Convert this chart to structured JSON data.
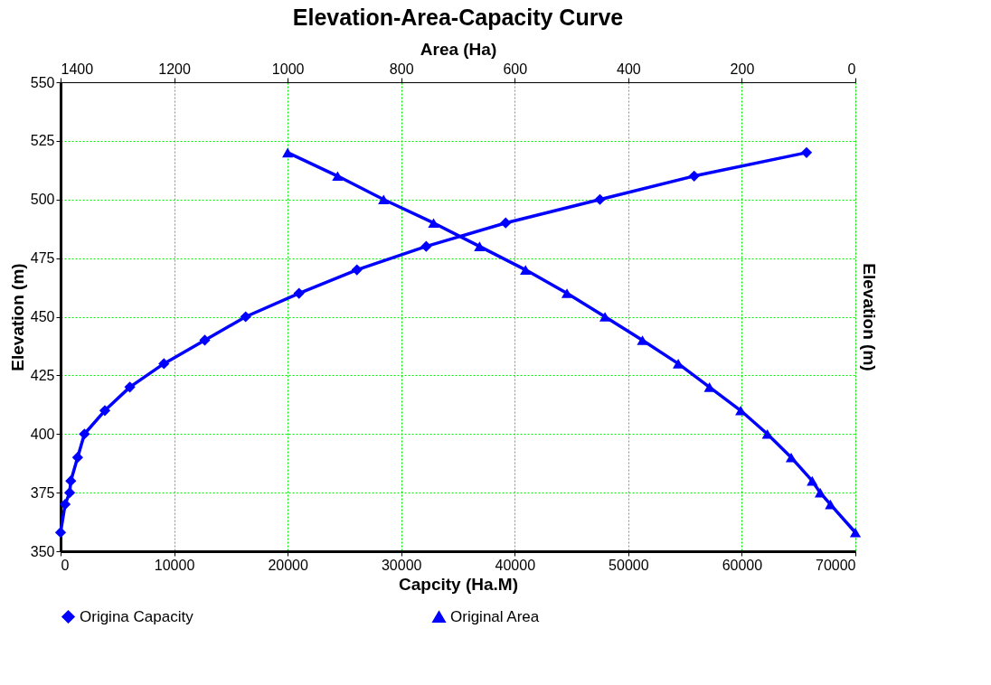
{
  "chart_data": {
    "type": "line",
    "title": "Elevation-Area-Capacity Curve",
    "xlabel": "Capcity (Ha.M)",
    "x2label": "Area (Ha)",
    "ylabel": "Elevation (m)",
    "y2label": "Elevation (m)",
    "xlim": [
      0,
      70000
    ],
    "xticks": [
      0,
      10000,
      20000,
      30000,
      40000,
      50000,
      60000,
      70000
    ],
    "x2lim": [
      1400,
      0
    ],
    "x2ticks": [
      1400,
      1200,
      1000,
      800,
      600,
      400,
      200,
      0
    ],
    "ylim": [
      350,
      550
    ],
    "yticks": [
      350,
      375,
      400,
      425,
      450,
      475,
      500,
      525,
      550
    ],
    "grid": true,
    "legend": "bottom",
    "series": [
      {
        "name": "Origina Capacity",
        "color": "#0000ff",
        "marker": "diamond",
        "x": [
          0,
          400,
          800,
          900,
          1500,
          2100,
          3900,
          6100,
          9100,
          12700,
          16300,
          21000,
          26100,
          32200,
          39200,
          47500,
          55800,
          65700
        ],
        "values": [
          358,
          370,
          375,
          380,
          390,
          400,
          410,
          420,
          430,
          440,
          450,
          460,
          470,
          480,
          490,
          500,
          510,
          520
        ]
      },
      {
        "name": "Original Area",
        "color": "#0000ff",
        "marker": "triangle",
        "axis": "x2",
        "x": [
          0,
          44,
          62,
          76,
          113,
          155,
          202,
          257,
          312,
          375,
          441,
          508,
          581,
          662,
          743,
          831,
          912,
          1000
        ],
        "values": [
          358,
          370,
          375,
          380,
          390,
          400,
          410,
          420,
          430,
          440,
          450,
          460,
          470,
          480,
          490,
          500,
          510,
          520
        ]
      }
    ]
  }
}
